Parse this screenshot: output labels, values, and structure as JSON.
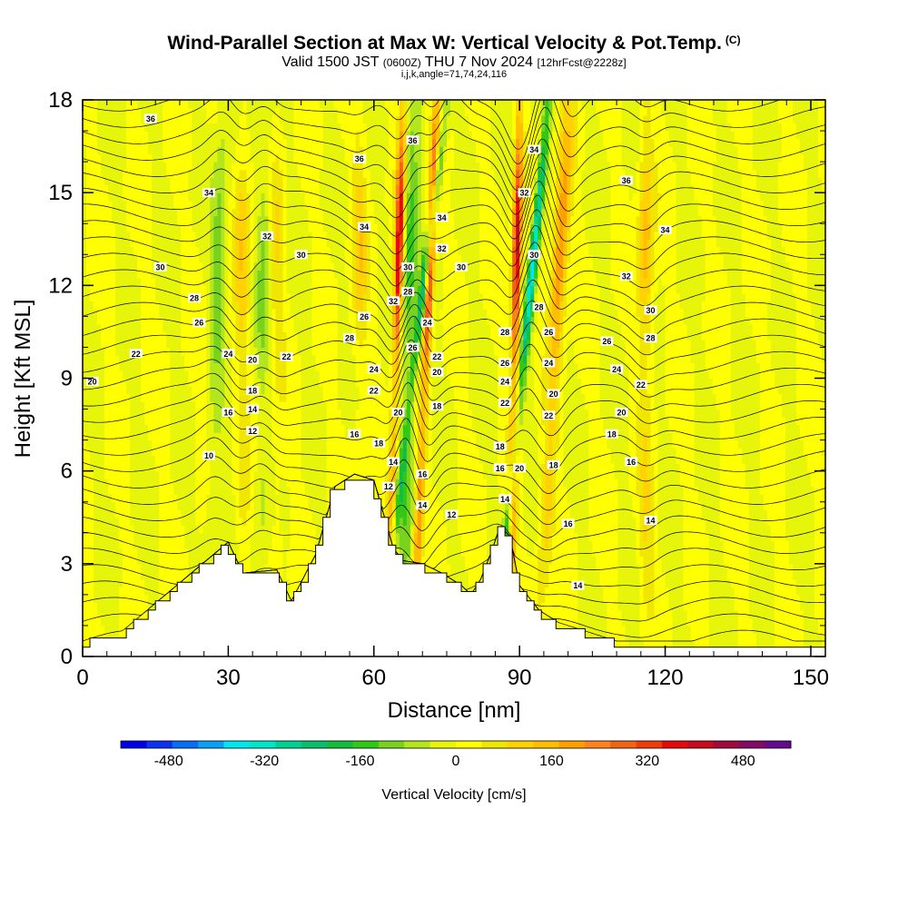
{
  "title": {
    "main": "Wind-Parallel Section at Max W: Vertical Velocity & Pot.Temp.",
    "tag": "(C)",
    "valid_a": "Valid 1500 JST",
    "valid_zulu": "(0600Z)",
    "valid_b": "THU 7 Nov 2024",
    "forecast": "[12hrFcst@2228z]",
    "indices": "i,j,k,angle=71,74,24,116"
  },
  "chart_data": {
    "type": "heatmap",
    "xlabel": "Distance [nm]",
    "ylabel": "Height [Kft MSL]",
    "xlim": [
      0,
      153
    ],
    "ylim": [
      0,
      18
    ],
    "xticks": [
      "0",
      "30",
      "60",
      "90",
      "120",
      "150"
    ],
    "yticks": [
      "0",
      "3",
      "6",
      "9",
      "12",
      "15",
      "18"
    ],
    "colorbar": {
      "label": "Vertical Velocity [cm/s]",
      "ticks": [
        "-480",
        "-320",
        "-160",
        "0",
        "160",
        "320",
        "480"
      ],
      "min": -560,
      "max": 560,
      "colors": [
        "#0000e6",
        "#0a32f0",
        "#0a6ef5",
        "#0aa0f5",
        "#00e6f0",
        "#00e6c8",
        "#00d296",
        "#0abe6e",
        "#14be3c",
        "#32c818",
        "#78d21e",
        "#b4e61e",
        "#e6f50a",
        "#ffff00",
        "#f0e600",
        "#ffd200",
        "#ffbe00",
        "#ffa000",
        "#ff821e",
        "#f06414",
        "#f03c0a",
        "#e60a0a",
        "#c80a1e",
        "#a00a3c",
        "#820a64",
        "#640a8c"
      ]
    },
    "terrain": {
      "x": [
        0,
        8,
        30,
        33,
        40,
        43,
        48,
        52,
        56,
        60,
        62,
        64,
        66,
        70,
        74,
        78,
        80,
        82,
        84,
        86,
        88,
        89,
        90,
        94,
        98,
        102,
        106,
        110,
        153
      ],
      "height": [
        0.4,
        0.7,
        3.6,
        2.6,
        2.7,
        1.7,
        3.2,
        5.4,
        5.8,
        5.6,
        4.5,
        3.4,
        3.0,
        2.9,
        2.6,
        2.2,
        1.9,
        2.4,
        3.2,
        4.1,
        3.8,
        3.0,
        2.2,
        1.4,
        1.0,
        0.8,
        0.6,
        0.4,
        0.4
      ]
    },
    "updrafts": [
      {
        "x0": 33,
        "x1": 33,
        "w": 120
      },
      {
        "x0": 40,
        "x1": 40,
        "w": 80
      },
      {
        "x0": 57,
        "x1": 57,
        "w": 100
      },
      {
        "x0": 63,
        "x1": 66,
        "w": 420
      },
      {
        "x0": 68,
        "x1": 73,
        "w": 440
      },
      {
        "x0": 88,
        "x1": 90,
        "w": 420
      },
      {
        "x0": 94,
        "x1": 100,
        "w": 240
      },
      {
        "x0": 116,
        "x1": 116,
        "w": 160
      }
    ],
    "downdrafts": [
      {
        "x0": 61,
        "x1": 75,
        "w": -320
      },
      {
        "x0": 85,
        "x1": 96,
        "w": -380
      },
      {
        "x0": 66,
        "x1": 68,
        "w": -180
      },
      {
        "x0": 26,
        "x1": 29,
        "w": -120
      },
      {
        "x0": 36,
        "x1": 38,
        "w": -100
      }
    ],
    "theta_labels": [
      {
        "x": 14,
        "y": 17.4,
        "t": "36"
      },
      {
        "x": 26,
        "y": 15.0,
        "t": "34"
      },
      {
        "x": 38,
        "y": 13.6,
        "t": "32"
      },
      {
        "x": 45,
        "y": 13.0,
        "t": "30"
      },
      {
        "x": 16,
        "y": 12.6,
        "t": "30"
      },
      {
        "x": 23,
        "y": 11.6,
        "t": "28"
      },
      {
        "x": 24,
        "y": 10.8,
        "t": "26"
      },
      {
        "x": 11,
        "y": 9.8,
        "t": "22"
      },
      {
        "x": 2,
        "y": 8.9,
        "t": "20"
      },
      {
        "x": 30,
        "y": 9.8,
        "t": "24"
      },
      {
        "x": 35,
        "y": 9.6,
        "t": "20"
      },
      {
        "x": 42,
        "y": 9.7,
        "t": "22"
      },
      {
        "x": 35,
        "y": 8.6,
        "t": "18"
      },
      {
        "x": 35,
        "y": 8.0,
        "t": "14"
      },
      {
        "x": 30,
        "y": 7.9,
        "t": "16"
      },
      {
        "x": 35,
        "y": 7.3,
        "t": "12"
      },
      {
        "x": 26,
        "y": 6.5,
        "t": "10"
      },
      {
        "x": 57,
        "y": 16.1,
        "t": "36"
      },
      {
        "x": 58,
        "y": 13.9,
        "t": "34"
      },
      {
        "x": 58,
        "y": 11.0,
        "t": "26"
      },
      {
        "x": 55,
        "y": 10.3,
        "t": "28"
      },
      {
        "x": 60,
        "y": 9.3,
        "t": "24"
      },
      {
        "x": 60,
        "y": 8.6,
        "t": "22"
      },
      {
        "x": 56,
        "y": 7.2,
        "t": "16"
      },
      {
        "x": 61,
        "y": 6.9,
        "t": "18"
      },
      {
        "x": 64,
        "y": 6.3,
        "t": "14"
      },
      {
        "x": 63,
        "y": 5.5,
        "t": "12"
      },
      {
        "x": 64,
        "y": 11.5,
        "t": "32"
      },
      {
        "x": 67,
        "y": 12.6,
        "t": "30"
      },
      {
        "x": 67,
        "y": 11.8,
        "t": "28"
      },
      {
        "x": 68,
        "y": 10.0,
        "t": "26"
      },
      {
        "x": 65,
        "y": 7.9,
        "t": "20"
      },
      {
        "x": 68,
        "y": 16.7,
        "t": "36"
      },
      {
        "x": 71,
        "y": 10.8,
        "t": "24"
      },
      {
        "x": 73,
        "y": 9.7,
        "t": "22"
      },
      {
        "x": 73,
        "y": 9.2,
        "t": "20"
      },
      {
        "x": 73,
        "y": 8.1,
        "t": "18"
      },
      {
        "x": 70,
        "y": 5.9,
        "t": "16"
      },
      {
        "x": 70,
        "y": 4.9,
        "t": "14"
      },
      {
        "x": 76,
        "y": 4.6,
        "t": "12"
      },
      {
        "x": 74,
        "y": 14.2,
        "t": "34"
      },
      {
        "x": 74,
        "y": 13.2,
        "t": "32"
      },
      {
        "x": 78,
        "y": 12.6,
        "t": "30"
      },
      {
        "x": 87,
        "y": 10.5,
        "t": "28"
      },
      {
        "x": 87,
        "y": 9.5,
        "t": "26"
      },
      {
        "x": 87,
        "y": 8.9,
        "t": "24"
      },
      {
        "x": 87,
        "y": 8.2,
        "t": "22"
      },
      {
        "x": 86,
        "y": 6.8,
        "t": "18"
      },
      {
        "x": 86,
        "y": 6.1,
        "t": "16"
      },
      {
        "x": 87,
        "y": 5.1,
        "t": "14"
      },
      {
        "x": 90,
        "y": 6.1,
        "t": "20"
      },
      {
        "x": 93,
        "y": 16.4,
        "t": "34"
      },
      {
        "x": 91,
        "y": 15.0,
        "t": "32"
      },
      {
        "x": 93,
        "y": 13.0,
        "t": "30"
      },
      {
        "x": 94,
        "y": 11.3,
        "t": "28"
      },
      {
        "x": 96,
        "y": 10.5,
        "t": "26"
      },
      {
        "x": 96,
        "y": 9.5,
        "t": "24"
      },
      {
        "x": 97,
        "y": 8.5,
        "t": "20"
      },
      {
        "x": 96,
        "y": 7.8,
        "t": "22"
      },
      {
        "x": 97,
        "y": 6.2,
        "t": "18"
      },
      {
        "x": 100,
        "y": 4.3,
        "t": "16"
      },
      {
        "x": 102,
        "y": 2.3,
        "t": "14"
      },
      {
        "x": 112,
        "y": 15.4,
        "t": "36"
      },
      {
        "x": 120,
        "y": 13.8,
        "t": "34"
      },
      {
        "x": 112,
        "y": 12.3,
        "t": "32"
      },
      {
        "x": 117,
        "y": 11.2,
        "t": "30"
      },
      {
        "x": 117,
        "y": 10.3,
        "t": "28"
      },
      {
        "x": 108,
        "y": 10.2,
        "t": "26"
      },
      {
        "x": 110,
        "y": 9.3,
        "t": "24"
      },
      {
        "x": 115,
        "y": 8.8,
        "t": "22"
      },
      {
        "x": 111,
        "y": 7.9,
        "t": "20"
      },
      {
        "x": 109,
        "y": 7.2,
        "t": "18"
      },
      {
        "x": 113,
        "y": 6.3,
        "t": "16"
      },
      {
        "x": 117,
        "y": 4.4,
        "t": "14"
      }
    ]
  }
}
